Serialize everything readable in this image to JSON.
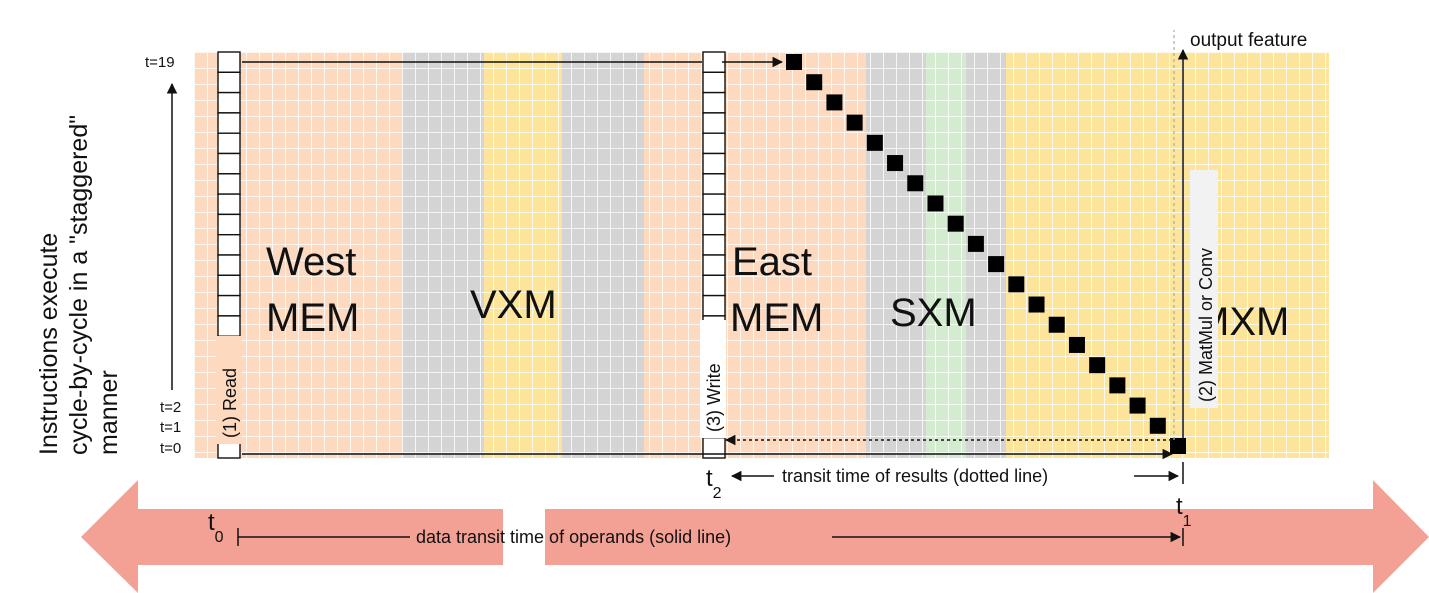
{
  "vertical_caption": [
    "Instructions execute",
    "cycle-by-cycle in a \"staggered\"",
    "manner"
  ],
  "time_labels": {
    "top": "t=19",
    "t2": "t=2",
    "t1": "t=1",
    "t0": "t=0"
  },
  "regions": [
    {
      "id": "west-mem",
      "line1": "West",
      "line2": "MEM"
    },
    {
      "id": "vxm",
      "line1": "VXM",
      "line2": ""
    },
    {
      "id": "east-mem",
      "line1": "East",
      "line2": "MEM"
    },
    {
      "id": "sxm",
      "line1": "SXM",
      "line2": ""
    },
    {
      "id": "mxm",
      "line1": "MXM",
      "line2": ""
    }
  ],
  "step_labels": {
    "read": "(1) Read",
    "matmul": "(2) MatMul or Conv",
    "write": "(3) Write"
  },
  "output_feature": "output feature",
  "markers": {
    "t0": "t",
    "t0_sub": "0",
    "t1": "t",
    "t1_sub": "1",
    "t2": "t",
    "t2_sub": "2"
  },
  "transit_results": "transit time of results (dotted line)",
  "transit_operands": "data transit time of operands (solid line)",
  "colors": {
    "mem": "#fcd9bf",
    "vxm_gray": "#d4d4d4",
    "yellow": "#fce59a",
    "green": "#d3ecd0",
    "arrow": "#f4a195",
    "black": "#000000"
  }
}
